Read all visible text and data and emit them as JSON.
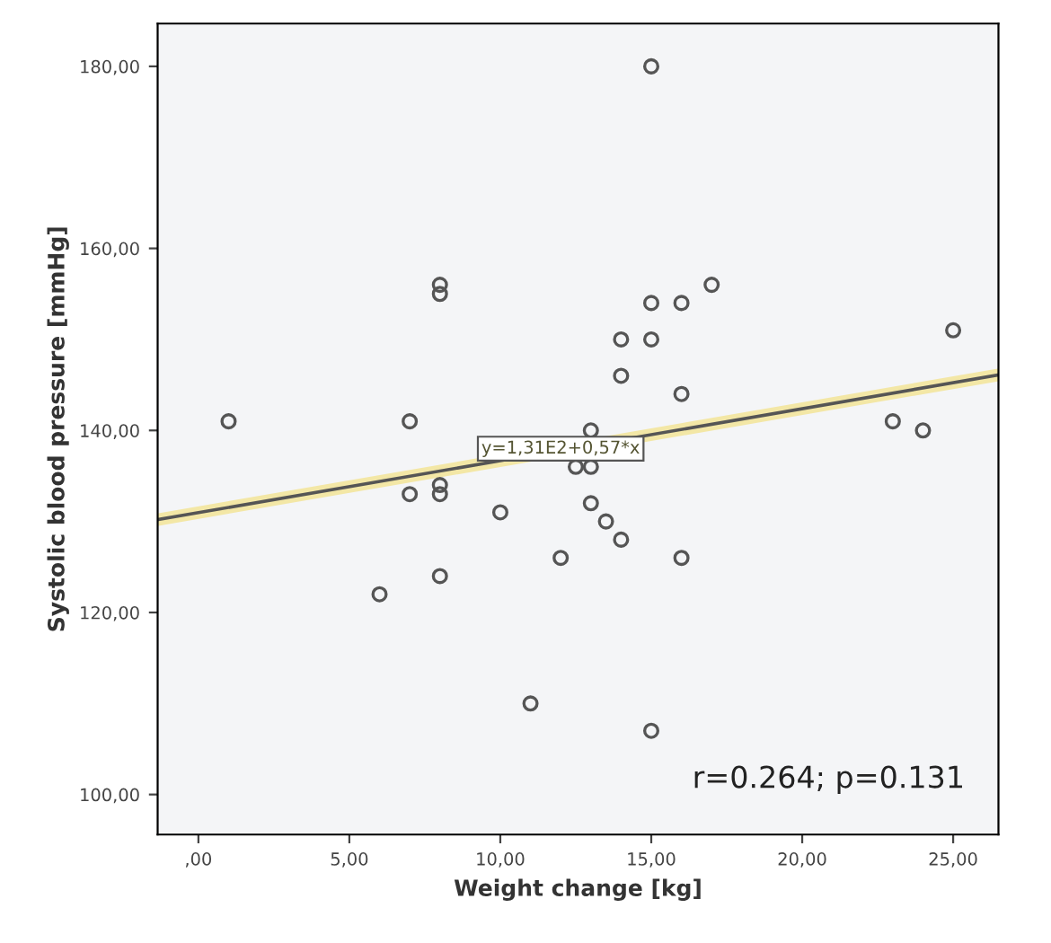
{
  "chart_data": {
    "type": "scatter",
    "xlabel": "Weight change [kg]",
    "ylabel": "Systolic blood pressure [mmHg]",
    "xlim": [
      -1.35,
      26.5
    ],
    "ylim": [
      95.6,
      184.7
    ],
    "xticks": [
      {
        "value": 0,
        "label": ",00"
      },
      {
        "value": 5,
        "label": "5,00"
      },
      {
        "value": 10,
        "label": "10,00"
      },
      {
        "value": 15,
        "label": "15,00"
      },
      {
        "value": 20,
        "label": "20,00"
      },
      {
        "value": 25,
        "label": "25,00"
      }
    ],
    "yticks": [
      {
        "value": 100,
        "label": "100,00"
      },
      {
        "value": 120,
        "label": "120,00"
      },
      {
        "value": 140,
        "label": "140,00"
      },
      {
        "value": 160,
        "label": "160,00"
      },
      {
        "value": 180,
        "label": "180,00"
      }
    ],
    "grid": false,
    "marker": "circle",
    "series": [
      {
        "color": "#555555",
        "x": [
          1,
          6,
          7,
          7,
          8,
          8,
          8,
          8,
          8,
          10,
          11,
          12,
          12.5,
          13,
          13,
          13,
          13.5,
          14,
          14,
          14,
          15,
          15,
          15,
          15,
          16,
          16,
          16,
          17,
          23,
          24,
          25
        ],
        "values": [
          141,
          122,
          141,
          133,
          156,
          155,
          134,
          133,
          124,
          131,
          110,
          126,
          136,
          136,
          140,
          132,
          130,
          128,
          150,
          146,
          180,
          154,
          150,
          107,
          154,
          144,
          126,
          156,
          141,
          140,
          151
        ]
      },
      {
        "type": "line",
        "color": "#555555",
        "marker": "none",
        "x": [
          -1.35,
          26.5
        ],
        "values": [
          130.2,
          146.1
        ]
      }
    ],
    "annotations": [
      {
        "text": "y=1,31E2+0,57*x",
        "x": 12,
        "y": 138
      },
      "r=0.264; p=0.131"
    ]
  }
}
